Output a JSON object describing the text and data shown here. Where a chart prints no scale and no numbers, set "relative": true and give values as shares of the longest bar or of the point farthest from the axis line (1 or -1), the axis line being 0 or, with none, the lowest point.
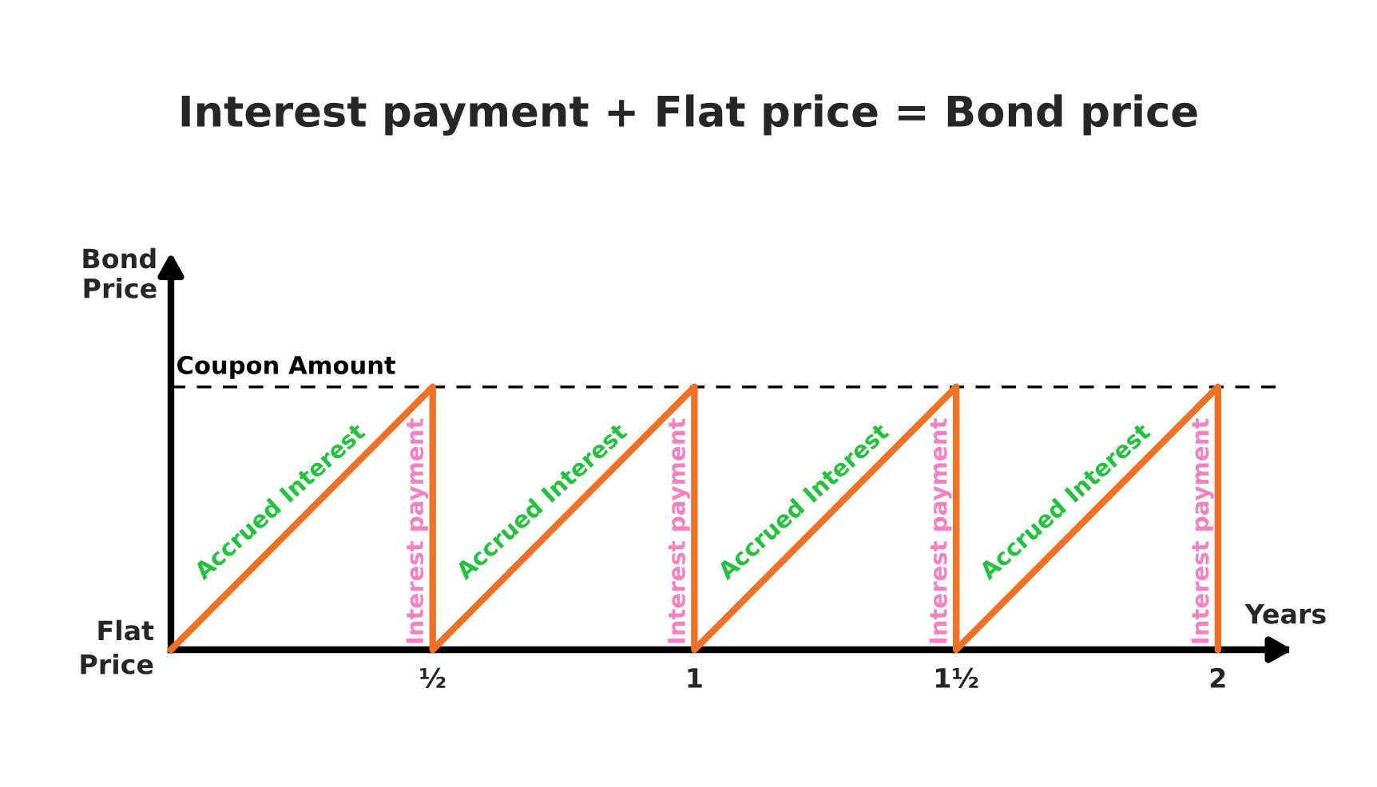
{
  "chart_data": {
    "type": "line",
    "relative": true,
    "title": "Interest payment + Flat price = Bond price",
    "xlabel": "Years",
    "ylabel": "Bond\nPrice",
    "x": [
      0,
      0.5,
      0.5,
      1,
      1,
      1.5,
      1.5,
      2,
      2
    ],
    "series": [
      {
        "color": "#f07124",
        "values": [
          0,
          1,
          0,
          1,
          0,
          1,
          0,
          1,
          0
        ]
      }
    ],
    "xlim": [
      0,
      2.13
    ],
    "xticks": [
      {
        "value": 0.5,
        "label": "½"
      },
      1,
      {
        "value": 1.5,
        "label": "1½"
      },
      2
    ],
    "tick_labels": "x",
    "grid": false,
    "legend": false,
    "marker": "none",
    "line_style": "solid",
    "ref_lines": [
      {
        "axis": "y",
        "value": 1,
        "label": "Coupon Amount",
        "color": "#000000",
        "line_style": "dashed"
      }
    ],
    "annotations": [
      "Flat\nPrice",
      {
        "text": "Accrued Interest",
        "x": 0.25,
        "y": 0.52
      },
      {
        "text": "Interest payment",
        "x": 0.5,
        "y": 0.45
      },
      {
        "text": "Accrued Interest",
        "x": 0.75,
        "y": 0.52
      },
      {
        "text": "Interest payment",
        "x": 1,
        "y": 0.45
      },
      {
        "text": "Accrued Interest",
        "x": 1.25,
        "y": 0.52
      },
      {
        "text": "Interest payment",
        "x": 1.5,
        "y": 0.45
      },
      {
        "text": "Accrued Interest",
        "x": 1.75,
        "y": 0.52
      },
      {
        "text": "Interest payment",
        "x": 2,
        "y": 0.45
      }
    ]
  }
}
